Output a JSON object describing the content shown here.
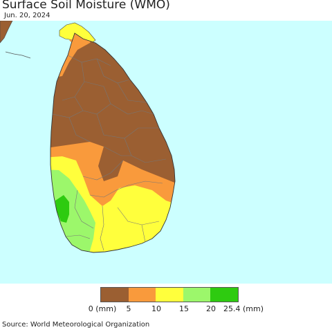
{
  "header": {
    "title": "Surface Soil Moisture (WMO)",
    "date": "Jun. 20, 2024"
  },
  "legend": {
    "colors": [
      "#9b5f32",
      "#f99a3c",
      "#ffff3c",
      "#9cf76b",
      "#2ecb10"
    ],
    "ticks": [
      "0 (mm)",
      "5",
      "10",
      "15",
      "20",
      "25.4 (mm)"
    ]
  },
  "map": {
    "region": "Sri Lanka",
    "ocean_color": "#ccffff",
    "india_color": "#9b5f32"
  },
  "footer": {
    "source": "Source: World Meteorological Organization"
  }
}
